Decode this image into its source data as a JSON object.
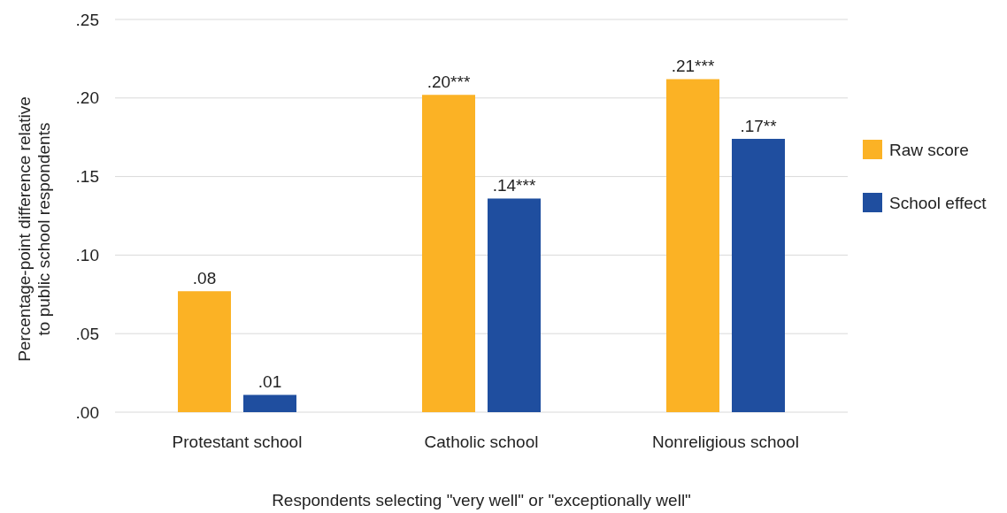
{
  "chart_data": {
    "type": "bar",
    "xlabel": "Respondents selecting \"very well\" or \"exceptionally well\"",
    "ylabel": "Percentage-point difference relative\nto public school respondents",
    "categories": [
      "Protestant school",
      "Catholic school",
      "Nonreligious school"
    ],
    "series": [
      {
        "name": "Raw score",
        "color": "#fbb225",
        "values": [
          0.077,
          0.202,
          0.212
        ],
        "value_labels": [
          ".08",
          ".20***",
          ".21***"
        ]
      },
      {
        "name": "School effect",
        "color": "#1f4e9f",
        "values": [
          0.011,
          0.136,
          0.174
        ],
        "value_labels": [
          ".01",
          ".14***",
          ".17**"
        ]
      }
    ],
    "ylim": [
      0,
      0.25
    ],
    "yticks": [
      {
        "value": 0,
        "label": ".00"
      },
      {
        "value": 0.05,
        "label": ".05"
      },
      {
        "value": 0.1,
        "label": ".10"
      },
      {
        "value": 0.15,
        "label": ".15"
      },
      {
        "value": 0.2,
        "label": ".20"
      },
      {
        "value": 0.25,
        "label": ".25"
      }
    ],
    "grid": "y",
    "legend": "right"
  }
}
